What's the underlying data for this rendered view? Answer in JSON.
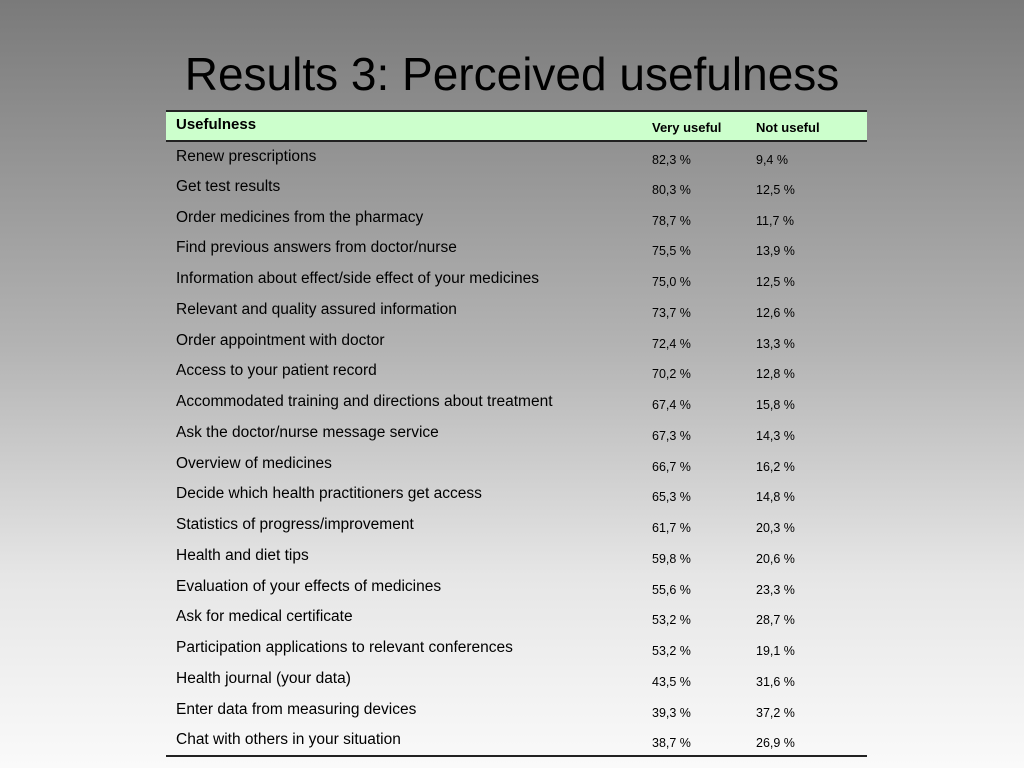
{
  "slide": {
    "title": "Results 3: Perceived usefulness"
  },
  "table": {
    "headers": [
      "Usefulness",
      "Very useful",
      "Not useful"
    ],
    "rows": [
      [
        "Renew prescriptions",
        "82,3 %",
        "9,4 %"
      ],
      [
        "Get test results",
        "80,3 %",
        "12,5 %"
      ],
      [
        "Order medicines from the pharmacy",
        "78,7 %",
        "11,7 %"
      ],
      [
        "Find previous answers from doctor/nurse",
        "75,5 %",
        "13,9 %"
      ],
      [
        "Information about effect/side effect of your medicines",
        "75,0 %",
        "12,5 %"
      ],
      [
        "Relevant and quality assured information",
        "73,7 %",
        "12,6 %"
      ],
      [
        "Order appointment with doctor",
        "72,4 %",
        "13,3 %"
      ],
      [
        "Access to your patient record",
        "70,2 %",
        "12,8 %"
      ],
      [
        "Accommodated training and directions about treatment",
        "67,4 %",
        "15,8 %"
      ],
      [
        "Ask the doctor/nurse message service",
        "67,3 %",
        "14,3 %"
      ],
      [
        "Overview of medicines",
        "66,7 %",
        "16,2 %"
      ],
      [
        "Decide which health practitioners get access",
        "65,3 %",
        "14,8 %"
      ],
      [
        "Statistics of progress/improvement",
        "61,7 %",
        "20,3 %"
      ],
      [
        "Health and diet tips",
        "59,8 %",
        "20,6 %"
      ],
      [
        "Evaluation of your effects of medicines",
        "55,6 %",
        "23,3 %"
      ],
      [
        "Ask for medical certificate",
        "53,2 %",
        "28,7 %"
      ],
      [
        "Participation applications to relevant conferences",
        "53,2 %",
        "19,1 %"
      ],
      [
        "Health journal (your data)",
        "43,5 %",
        "31,6 %"
      ],
      [
        "Enter data from measuring devices",
        "39,3 %",
        "37,2 %"
      ],
      [
        "Chat with others in your situation",
        "38,7 %",
        "26,9 %"
      ]
    ]
  }
}
